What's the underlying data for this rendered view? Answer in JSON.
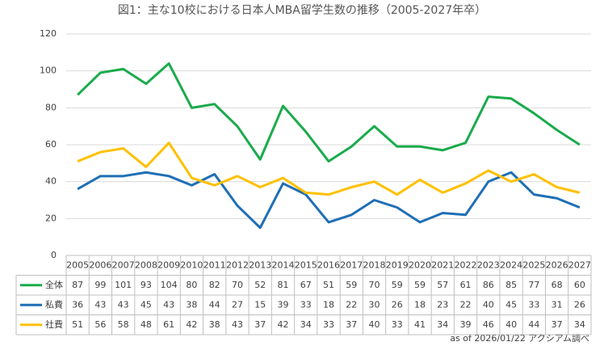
{
  "chart_data": {
    "type": "line",
    "title": "図1：主な10校における日本人MBA留学生数の推移（2005-2027年卒）",
    "categories": [
      "2005",
      "2006",
      "2007",
      "2008",
      "2009",
      "2010",
      "2011",
      "2012",
      "2013",
      "2014",
      "2015",
      "2016",
      "2017",
      "2018",
      "2019",
      "2020",
      "2021",
      "2022",
      "2023",
      "2024",
      "2025",
      "2026",
      "2027"
    ],
    "series": [
      {
        "name": "全体",
        "color": "#1aab4c",
        "values": [
          87,
          99,
          101,
          93,
          104,
          80,
          82,
          70,
          52,
          81,
          67,
          51,
          59,
          70,
          59,
          59,
          57,
          61,
          86,
          85,
          77,
          68,
          60
        ]
      },
      {
        "name": "私費",
        "color": "#1f6fb5",
        "values": [
          36,
          43,
          43,
          45,
          43,
          38,
          44,
          27,
          15,
          39,
          33,
          18,
          22,
          30,
          26,
          18,
          23,
          22,
          40,
          45,
          33,
          31,
          26
        ]
      },
      {
        "name": "社費",
        "color": "#ffc000",
        "values": [
          51,
          56,
          58,
          48,
          61,
          42,
          38,
          43,
          37,
          42,
          34,
          33,
          37,
          40,
          33,
          41,
          34,
          39,
          46,
          40,
          44,
          37,
          34
        ]
      }
    ],
    "ylim": [
      0,
      120
    ],
    "yticks": [
      0,
      20,
      40,
      60,
      80,
      100,
      120
    ],
    "grid": true,
    "note": "as of 2026/01/22 アクシアム調べ"
  }
}
